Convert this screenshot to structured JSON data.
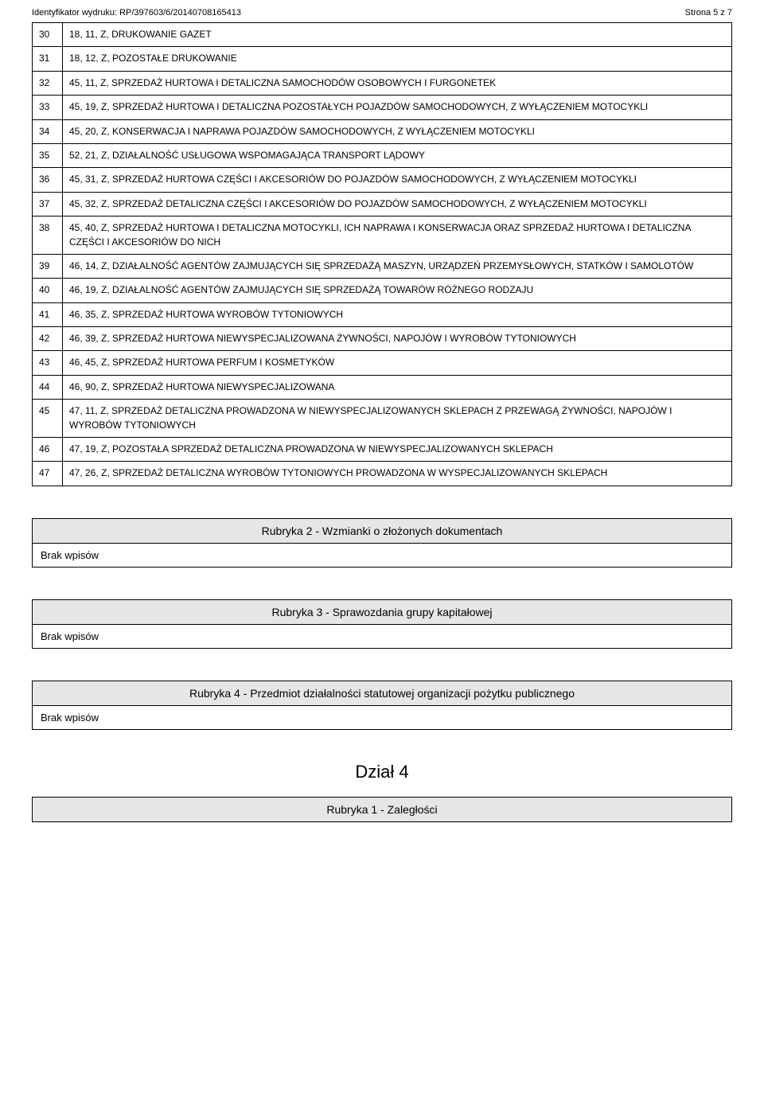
{
  "header": {
    "identyfikator": "Identyfikator wydruku: RP/397603/6/20140708165413",
    "strona": "Strona 5 z 7"
  },
  "rows": [
    {
      "n": "30",
      "t": "18, 11, Z, DRUKOWANIE GAZET"
    },
    {
      "n": "31",
      "t": "18, 12, Z, POZOSTAŁE DRUKOWANIE"
    },
    {
      "n": "32",
      "t": "45, 11, Z, SPRZEDAŻ HURTOWA I DETALICZNA SAMOCHODÓW OSOBOWYCH I FURGONETEK"
    },
    {
      "n": "33",
      "t": "45, 19, Z, SPRZEDAŻ HURTOWA I DETALICZNA POZOSTAŁYCH POJAZDÓW SAMOCHODOWYCH, Z WYŁĄCZENIEM MOTOCYKLI"
    },
    {
      "n": "34",
      "t": "45, 20, Z, KONSERWACJA I NAPRAWA POJAZDÓW SAMOCHODOWYCH, Z WYŁĄCZENIEM MOTOCYKLI"
    },
    {
      "n": "35",
      "t": "52, 21, Z, DZIAŁALNOŚĆ USŁUGOWA WSPOMAGAJĄCA TRANSPORT LĄDOWY"
    },
    {
      "n": "36",
      "t": "45, 31, Z, SPRZEDAŻ HURTOWA CZĘŚCI I AKCESORIÓW DO POJAZDÓW SAMOCHODOWYCH, Z WYŁĄCZENIEM MOTOCYKLI"
    },
    {
      "n": "37",
      "t": "45, 32, Z, SPRZEDAŻ DETALICZNA CZĘŚCI I AKCESORIÓW DO POJAZDÓW SAMOCHODOWYCH, Z WYŁĄCZENIEM MOTOCYKLI"
    },
    {
      "n": "38",
      "t": "45, 40, Z, SPRZEDAŻ HURTOWA I DETALICZNA MOTOCYKLI, ICH NAPRAWA I KONSERWACJA ORAZ SPRZEDAŻ HURTOWA I DETALICZNA CZĘŚCI I AKCESORIÓW DO NICH"
    },
    {
      "n": "39",
      "t": "46, 14, Z, DZIAŁALNOŚĆ AGENTÓW ZAJMUJĄCYCH SIĘ SPRZEDAŻĄ MASZYN, URZĄDZEŃ PRZEMYSŁOWYCH, STATKÓW I SAMOLOTÓW"
    },
    {
      "n": "40",
      "t": "46, 19, Z, DZIAŁALNOŚĆ AGENTÓW ZAJMUJĄCYCH SIĘ SPRZEDAŻĄ TOWARÓW RÓŻNEGO RODZAJU"
    },
    {
      "n": "41",
      "t": "46, 35, Z, SPRZEDAŻ HURTOWA WYROBÓW TYTONIOWYCH"
    },
    {
      "n": "42",
      "t": "46, 39, Z, SPRZEDAŻ HURTOWA NIEWYSPECJALIZOWANA ŻYWNOŚCI, NAPOJÓW I WYROBÓW TYTONIOWYCH"
    },
    {
      "n": "43",
      "t": "46, 45, Z, SPRZEDAŻ HURTOWA PERFUM I KOSMETYKÓW"
    },
    {
      "n": "44",
      "t": "46, 90, Z, SPRZEDAŻ HURTOWA NIEWYSPECJALIZOWANA"
    },
    {
      "n": "45",
      "t": "47, 11, Z, SPRZEDAŻ DETALICZNA PROWADZONA W NIEWYSPECJALIZOWANYCH SKLEPACH Z PRZEWAGĄ ŻYWNOŚCI, NAPOJÓW I WYROBÓW TYTONIOWYCH"
    },
    {
      "n": "46",
      "t": "47, 19, Z, POZOSTAŁA SPRZEDAŻ DETALICZNA PROWADZONA W NIEWYSPECJALIZOWANYCH SKLEPACH"
    },
    {
      "n": "47",
      "t": "47, 26, Z, SPRZEDAŻ DETALICZNA WYROBÓW TYTONIOWYCH PROWADZONA W WYSPECJALIZOWANYCH SKLEPACH"
    }
  ],
  "sections": {
    "r2_title": "Rubryka 2 - Wzmianki o złożonych dokumentach",
    "r2_body": "Brak wpisów",
    "r3_title": "Rubryka 3 - Sprawozdania grupy kapitałowej",
    "r3_body": "Brak wpisów",
    "r4_title": "Rubryka 4 - Przedmiot działalności statutowej organizacji pożytku publicznego",
    "r4_body": "Brak wpisów",
    "dzial4": "Dział 4",
    "r1b_title": "Rubryka 1 - Zaległości"
  },
  "style": {
    "section_bg": "#e6e6e6",
    "border_color": "#000000",
    "body_font_size": 12
  }
}
